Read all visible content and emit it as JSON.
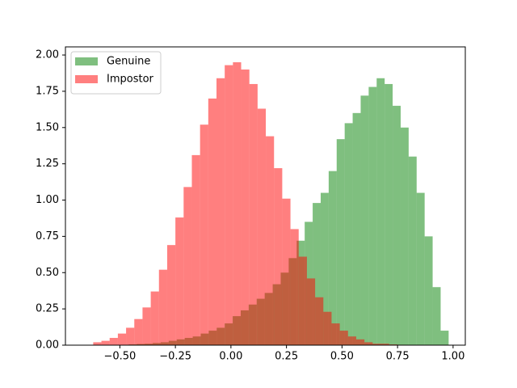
{
  "chart_data": {
    "type": "histogram",
    "xlim": [
      -0.745,
      1.055
    ],
    "ylim": [
      0,
      2.056
    ],
    "xticks": [
      {
        "value": -0.5,
        "label": "−0.50"
      },
      {
        "value": -0.25,
        "label": "−0.25"
      },
      {
        "value": 0,
        "label": "0.00"
      },
      {
        "value": 0.25,
        "label": "0.25"
      },
      {
        "value": 0.5,
        "label": "0.50"
      },
      {
        "value": 0.75,
        "label": "0.75"
      },
      {
        "value": 1,
        "label": "1.00"
      }
    ],
    "yticks": [
      {
        "value": 0,
        "label": "0.00"
      },
      {
        "value": 0.25,
        "label": "0.25"
      },
      {
        "value": 0.5,
        "label": "0.50"
      },
      {
        "value": 0.75,
        "label": "0.75"
      },
      {
        "value": 1,
        "label": "1.00"
      },
      {
        "value": 1.25,
        "label": "1.25"
      },
      {
        "value": 1.5,
        "label": "1.50"
      },
      {
        "value": 1.75,
        "label": "1.75"
      },
      {
        "value": 2,
        "label": "2.00"
      }
    ],
    "grid": false,
    "legend": "upper left",
    "alpha": 0.5,
    "series": [
      {
        "name": "Genuine",
        "color": "#008000",
        "bins": [
          -0.46,
          -0.424,
          -0.388,
          -0.352,
          -0.316,
          -0.28,
          -0.244,
          -0.208,
          -0.172,
          -0.136,
          -0.1,
          -0.064,
          -0.028,
          0.008,
          0.044,
          0.08,
          0.116,
          0.152,
          0.188,
          0.224,
          0.26,
          0.296,
          0.332,
          0.368,
          0.404,
          0.44,
          0.476,
          0.512,
          0.548,
          0.584,
          0.62,
          0.656,
          0.692,
          0.728,
          0.764,
          0.8,
          0.836,
          0.872,
          0.908,
          0.944,
          0.98
        ],
        "values": [
          0.005,
          0.008,
          0.01,
          0.015,
          0.02,
          0.03,
          0.04,
          0.05,
          0.06,
          0.08,
          0.1,
          0.12,
          0.15,
          0.2,
          0.24,
          0.28,
          0.32,
          0.36,
          0.42,
          0.5,
          0.6,
          0.72,
          0.85,
          0.98,
          1.05,
          1.2,
          1.42,
          1.53,
          1.6,
          1.72,
          1.78,
          1.84,
          1.8,
          1.65,
          1.5,
          1.3,
          1.05,
          0.75,
          0.4,
          0.1
        ]
      },
      {
        "name": "Impostor",
        "color": "#ff0000",
        "bins": [
          -0.62,
          -0.583,
          -0.546,
          -0.509,
          -0.472,
          -0.435,
          -0.398,
          -0.361,
          -0.324,
          -0.287,
          -0.25,
          -0.213,
          -0.176,
          -0.139,
          -0.102,
          -0.065,
          -0.028,
          0.009,
          0.046,
          0.083,
          0.12,
          0.157,
          0.194,
          0.231,
          0.268,
          0.305,
          0.342,
          0.379,
          0.416,
          0.453,
          0.49,
          0.527,
          0.564,
          0.601,
          0.638,
          0.675,
          0.712,
          0.749,
          0.786,
          0.823,
          0.86
        ],
        "values": [
          0.02,
          0.03,
          0.05,
          0.08,
          0.12,
          0.18,
          0.26,
          0.37,
          0.52,
          0.69,
          0.88,
          1.09,
          1.31,
          1.52,
          1.7,
          1.84,
          1.93,
          1.95,
          1.9,
          1.8,
          1.63,
          1.44,
          1.22,
          1.01,
          0.8,
          0.61,
          0.46,
          0.33,
          0.23,
          0.15,
          0.1,
          0.06,
          0.04,
          0.02,
          0.01,
          0.01,
          0.005,
          0.003,
          0.002,
          0.001
        ]
      }
    ]
  }
}
